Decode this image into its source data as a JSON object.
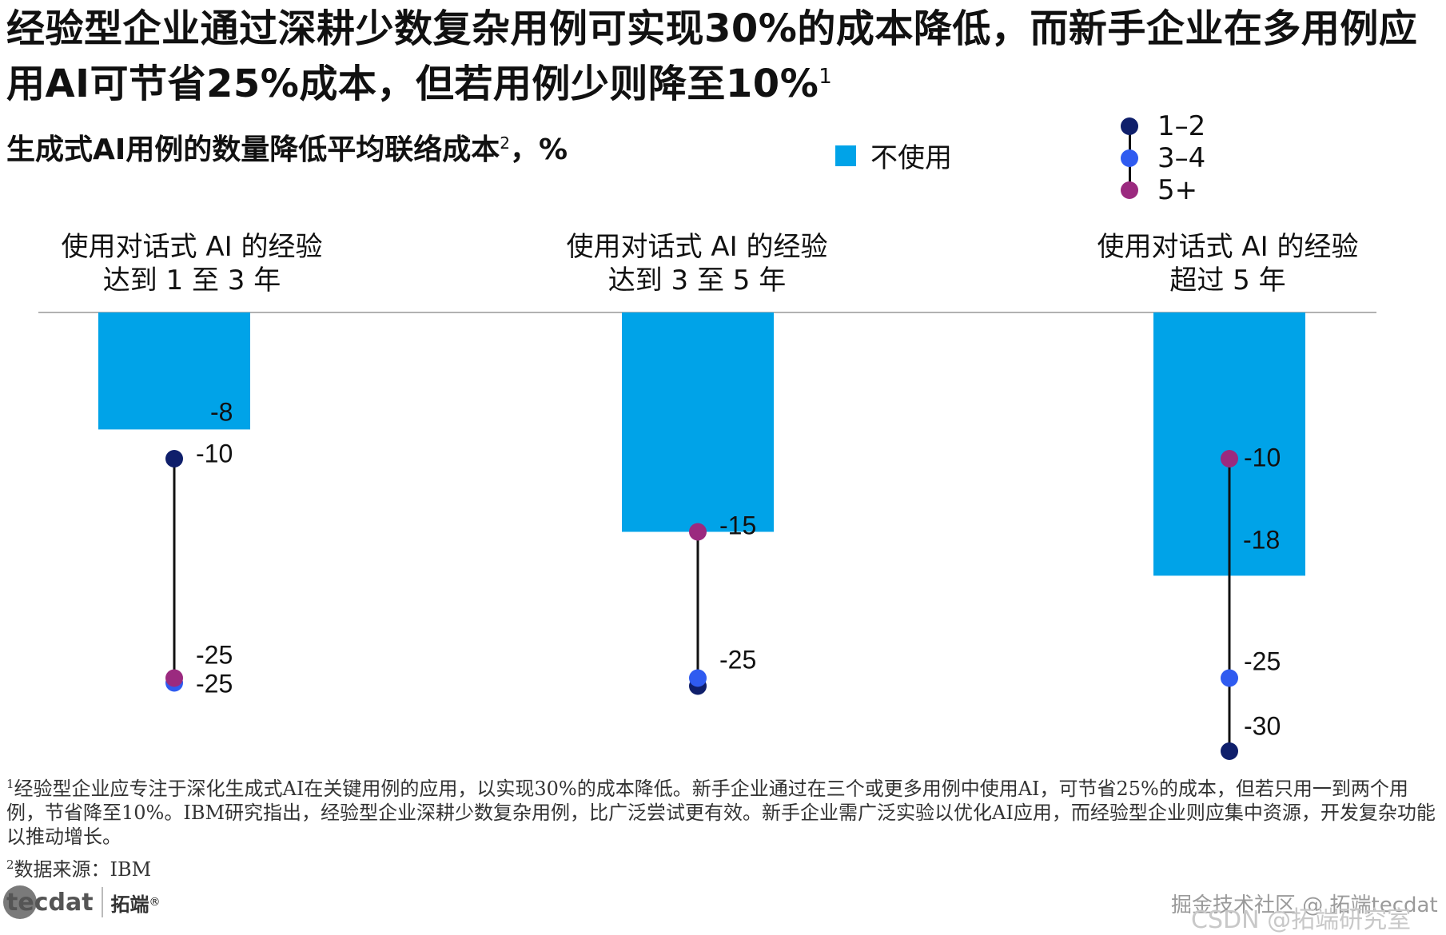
{
  "header": {
    "title": "经验型企业通过深耕少数复杂用例可实现30%的成本降低，而新手企业在多用例应用AI可节省25%成本，但若用例少则降至10%",
    "title_sup": "1",
    "subtitle": "生成式AI用例的数量降低平均联络成本",
    "subtitle_sup": "2",
    "subtitle_unit": "，%"
  },
  "legend": {
    "bar_label": "不使用",
    "dot_labels": [
      "1–2",
      "3–4",
      "5+"
    ]
  },
  "colors": {
    "bar": "#00A3E8",
    "dot_1_2": "#0F1F6B",
    "dot_3_4": "#2F5BF0",
    "dot_5_plus": "#9B2A7F",
    "axis": "#999999"
  },
  "chart_data": {
    "type": "bar",
    "title": "生成式AI用例的数量降低平均联络成本²，%",
    "categories": [
      "使用对话式 AI 的经验\n达到 1 至 3 年",
      "使用对话式 AI 的经验\n达到 3 至 5 年",
      "使用对话式 AI 的经验\n超过 5 年"
    ],
    "category_lines": [
      [
        "使用对话式 AI 的经验",
        "达到 1 至 3 年"
      ],
      [
        "使用对话式 AI 的经验",
        "达到 3 至 5 年"
      ],
      [
        "使用对话式 AI 的经验",
        "超过 5 年"
      ]
    ],
    "series": [
      {
        "name": "不使用",
        "values": [
          -8,
          -15,
          -18
        ],
        "kind": "bar"
      },
      {
        "name": "1–2",
        "values": [
          -10,
          -25,
          -30
        ],
        "kind": "dot"
      },
      {
        "name": "3–4",
        "values": [
          -25,
          -25,
          -25
        ],
        "kind": "dot"
      },
      {
        "name": "5+",
        "values": [
          -25,
          -15,
          -10
        ],
        "kind": "dot"
      }
    ],
    "data_labels": [
      {
        "bar": "-8",
        "dots": [
          "-10",
          "-25",
          "-25"
        ]
      },
      {
        "bar": "-15",
        "dots": [
          "-25"
        ]
      },
      {
        "bar": "-18",
        "dots": [
          "-10",
          "-25",
          "-30"
        ]
      }
    ],
    "ylim": [
      -30,
      0
    ],
    "legend_position": "top-right",
    "grid": false
  },
  "footnotes": {
    "note1_sup": "1",
    "note1": "经验型企业应专注于深化生成式AI在关键用例的应用，以实现30%的成本降低。新手企业通过在三个或更多用例中使用AI，可节省25%的成本，但若只用一到两个用例，节省降至10%。IBM研究指出，经验型企业深耕少数复杂用例，比广泛尝试更有效。新手企业需广泛实验以优化AI应用，而经验型企业则应集中资源，开发复杂功能以推动增长。",
    "note2_sup": "2",
    "note2": "数据来源：IBM"
  },
  "branding": {
    "logo_text": "tecdat",
    "logo_cn": "拓端",
    "logo_reg": "®",
    "watermark": "掘金技术社区 @ 拓端tecdat",
    "watermark2": "CSDN @拓端研究室"
  }
}
